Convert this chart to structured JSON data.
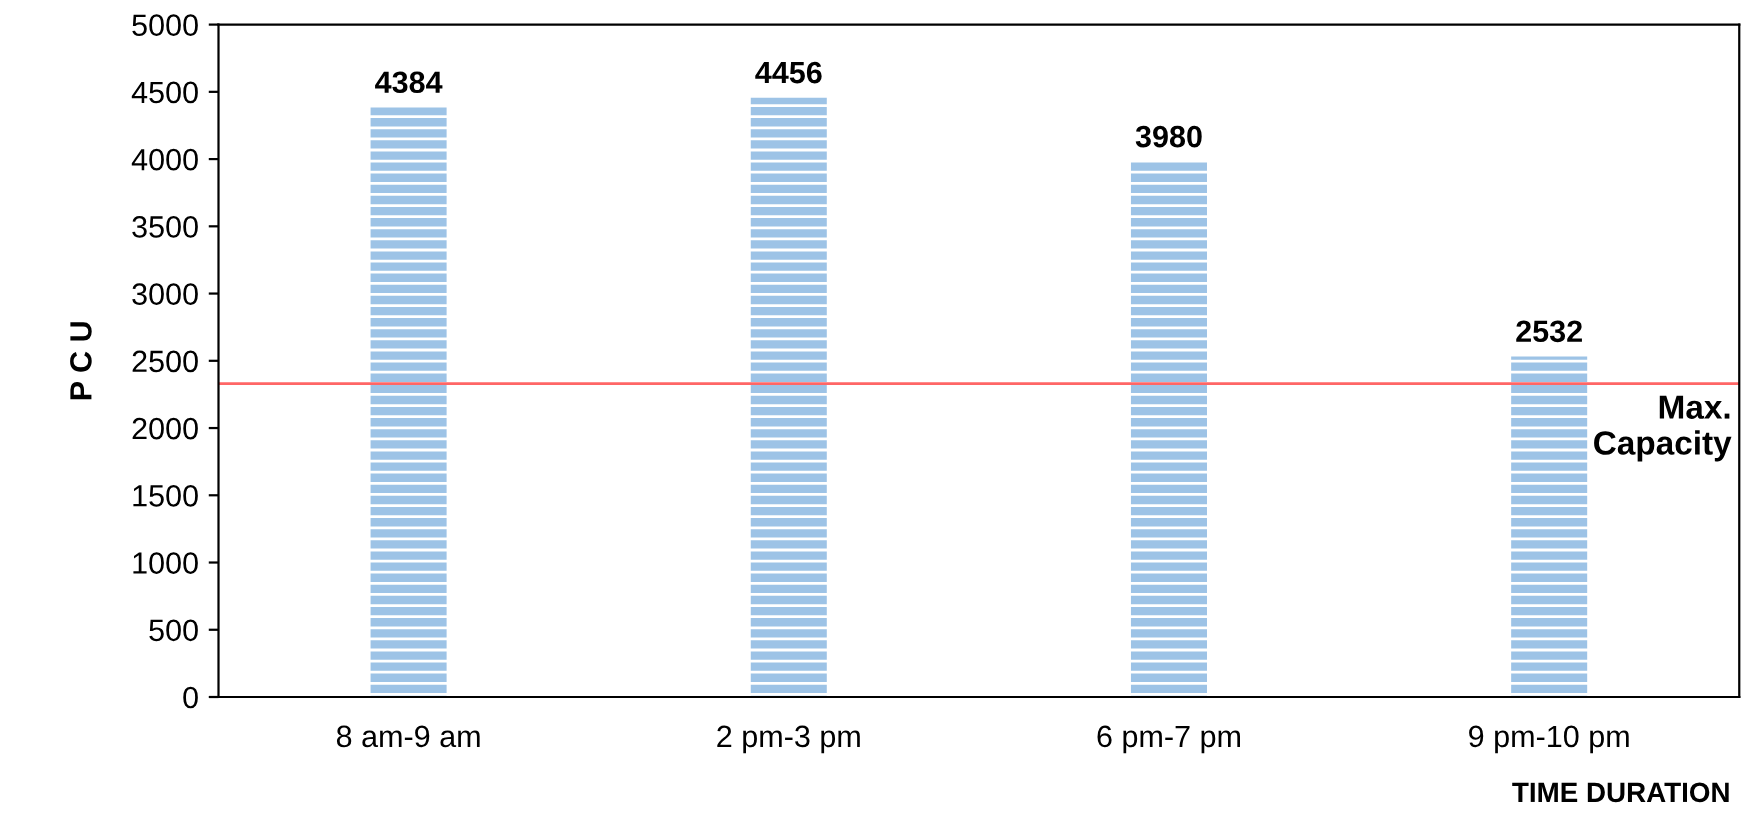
{
  "chart_data": {
    "type": "bar",
    "xlabel": "TIME DURATION",
    "ylabel": "P C U",
    "categories": [
      "8 am-9 am",
      "2 pm-3 pm",
      "6 pm-7 pm",
      "9 pm-10 pm"
    ],
    "values": [
      4384,
      4456,
      3980,
      2532
    ],
    "color": "#9dc3e6",
    "ylim": [
      0,
      5000
    ],
    "yticks": [
      0,
      500,
      1000,
      1500,
      2000,
      2500,
      3000,
      3500,
      4000,
      4500,
      5000
    ],
    "data_labels": true,
    "grid": false,
    "ref_lines": [
      {
        "axis": "y",
        "value": 2330,
        "label": "Max.\nCapacity",
        "color": "#ff6666",
        "line_style": "solid"
      }
    ]
  }
}
